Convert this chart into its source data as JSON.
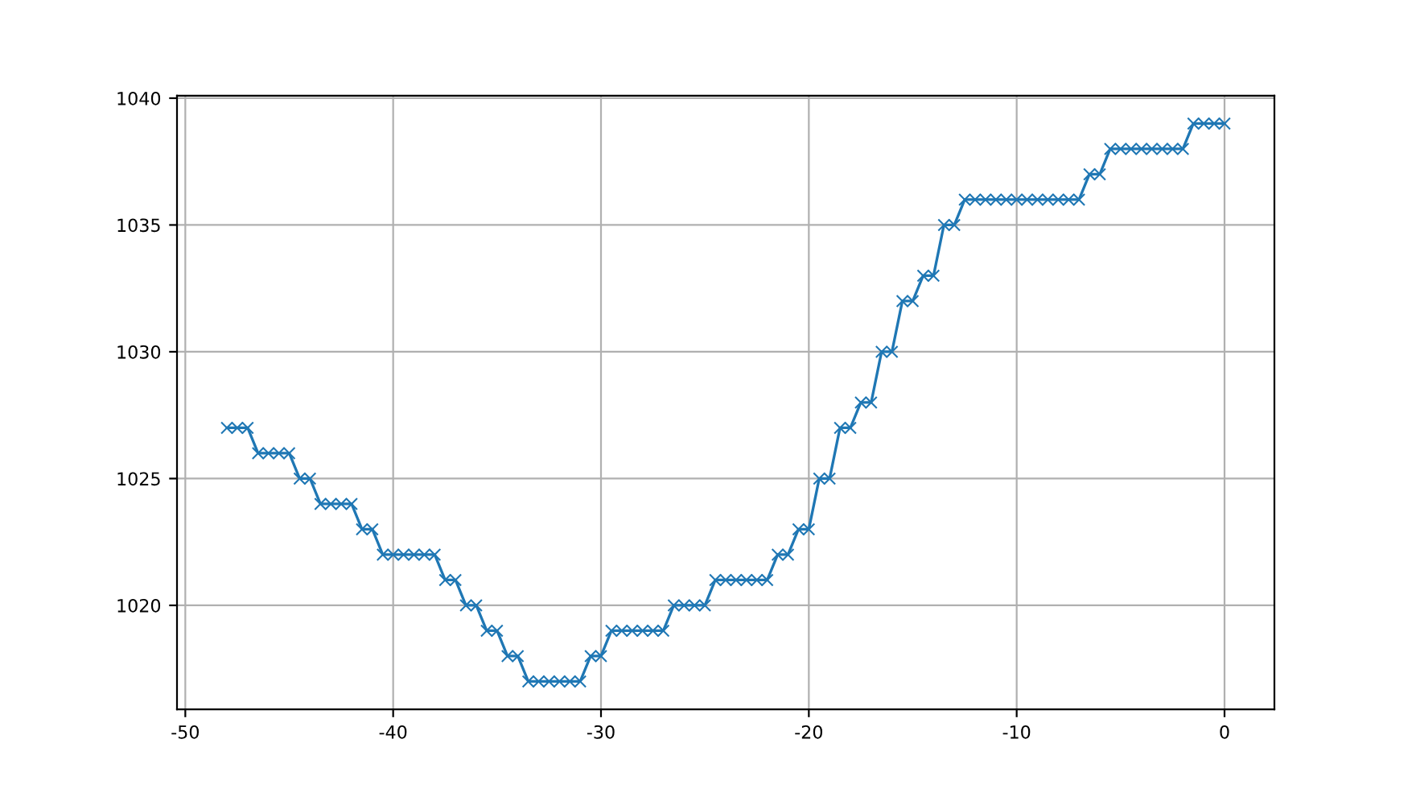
{
  "chart_data": {
    "type": "line",
    "x": [
      -48,
      -47.5,
      -47,
      -46.5,
      -46,
      -45.5,
      -45,
      -44.5,
      -44,
      -43.5,
      -43,
      -42.5,
      -42,
      -41.5,
      -41,
      -40.5,
      -40,
      -39.5,
      -39,
      -38.5,
      -38,
      -37.5,
      -37,
      -36.5,
      -36,
      -35.5,
      -35,
      -34.5,
      -34,
      -33.5,
      -33,
      -32.5,
      -32,
      -31.5,
      -31,
      -30.5,
      -30,
      -29.5,
      -29,
      -28.5,
      -28,
      -27.5,
      -27,
      -26.5,
      -26,
      -25.5,
      -25,
      -24.5,
      -24,
      -23.5,
      -23,
      -22.5,
      -22,
      -21.5,
      -21,
      -20.5,
      -20,
      -19.5,
      -19,
      -18.5,
      -18,
      -17.5,
      -17,
      -16.5,
      -16,
      -15.5,
      -15,
      -14.5,
      -14,
      -13.5,
      -13,
      -12.5,
      -12,
      -11.5,
      -11,
      -10.5,
      -10,
      -9.5,
      -9,
      -8.5,
      -8,
      -7.5,
      -7,
      -6.5,
      -6,
      -5.5,
      -5,
      -4.5,
      -4,
      -3.5,
      -3,
      -2.5,
      -2,
      -1.5,
      -1,
      -0.5,
      0
    ],
    "series": [
      {
        "color": "#1f77b4",
        "values": [
          1027,
          1027,
          1027,
          1026,
          1026,
          1026,
          1026,
          1025,
          1025,
          1024,
          1024,
          1024,
          1024,
          1023,
          1023,
          1022,
          1022,
          1022,
          1022,
          1022,
          1022,
          1021,
          1021,
          1020,
          1020,
          1019,
          1019,
          1018,
          1018,
          1017,
          1017,
          1017,
          1017,
          1017,
          1017,
          1018,
          1018,
          1019,
          1019,
          1019,
          1019,
          1019,
          1019,
          1020,
          1020,
          1020,
          1020,
          1021,
          1021,
          1021,
          1021,
          1021,
          1021,
          1022,
          1022,
          1023,
          1023,
          1025,
          1025,
          1027,
          1027,
          1028,
          1028,
          1030,
          1030,
          1032,
          1032,
          1033,
          1033,
          1035,
          1035,
          1036,
          1036,
          1036,
          1036,
          1036,
          1036,
          1036,
          1036,
          1036,
          1036,
          1036,
          1036,
          1037,
          1037,
          1038,
          1038,
          1038,
          1038,
          1038,
          1038,
          1038,
          1038,
          1039,
          1039,
          1039,
          1039
        ]
      }
    ],
    "xlim": [
      -50.4,
      2.4
    ],
    "ylim": [
      1015.9,
      1040.1
    ],
    "xticks": [
      -50,
      -40,
      -30,
      -20,
      -10,
      0
    ],
    "yticks": [
      1020,
      1025,
      1030,
      1035,
      1040
    ],
    "grid": true,
    "marker": "cross",
    "line_style": "solid"
  }
}
